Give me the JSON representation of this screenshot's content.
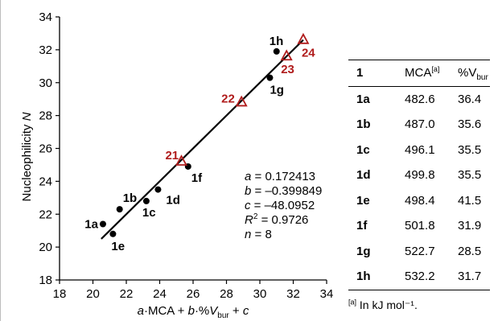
{
  "chart_data": {
    "type": "scatter",
    "xlabel": "a·MCA + b·%Vbur + c",
    "ylabel": "Nucleophilicity N",
    "xlim": [
      18,
      34
    ],
    "ylim": [
      18,
      34
    ],
    "xticks": [
      "18",
      "20",
      "22",
      "24",
      "26",
      "28",
      "30",
      "32",
      "34"
    ],
    "yticks": [
      "18",
      "20",
      "22",
      "24",
      "26",
      "28",
      "30",
      "32",
      "34"
    ],
    "grid": false,
    "series": [
      {
        "marker": "circle",
        "color": "#000000",
        "points": [
          {
            "label": "1a",
            "x": 20.6,
            "y": 21.4
          },
          {
            "label": "1b",
            "x": 21.6,
            "y": 22.3
          },
          {
            "label": "1c",
            "x": 23.2,
            "y": 22.8
          },
          {
            "label": "1d",
            "x": 23.9,
            "y": 23.5
          },
          {
            "label": "1e",
            "x": 21.2,
            "y": 20.8
          },
          {
            "label": "1f",
            "x": 25.7,
            "y": 24.9
          },
          {
            "label": "1g",
            "x": 30.6,
            "y": 30.3
          },
          {
            "label": "1h",
            "x": 31.0,
            "y": 31.9
          }
        ]
      },
      {
        "marker": "triangle",
        "color": "#b01c1c",
        "points": [
          {
            "label": "21",
            "x": 25.3,
            "y": 25.2
          },
          {
            "label": "22",
            "x": 28.9,
            "y": 28.8
          },
          {
            "label": "23",
            "x": 31.6,
            "y": 31.6
          },
          {
            "label": "24",
            "x": 32.6,
            "y": 32.6
          }
        ]
      }
    ],
    "fit_line": {
      "x": [
        20.5,
        32.6
      ],
      "y": [
        20.5,
        32.6
      ]
    },
    "equation": {
      "a": "a = 0.172413",
      "b": "b = –0.399849",
      "c": "c = –48.0952",
      "r2": "R2 = 0.9726",
      "n": "n = 8"
    }
  },
  "table": {
    "headers": [
      "1",
      "MCA",
      "%V"
    ],
    "header_sup": "[a]",
    "header_sub": "bur",
    "rows": [
      [
        "1a",
        "482.6",
        "36.4"
      ],
      [
        "1b",
        "487.0",
        "35.6"
      ],
      [
        "1c",
        "496.1",
        "35.5"
      ],
      [
        "1d",
        "499.8",
        "35.5"
      ],
      [
        "1e",
        "498.4",
        "41.5"
      ],
      [
        "1f",
        "501.8",
        "31.9"
      ],
      [
        "1g",
        "522.7",
        "28.5"
      ],
      [
        "1h",
        "532.2",
        "31.7"
      ]
    ],
    "footnote_mark": "[a]",
    "footnote": "In kJ mol⁻¹."
  }
}
